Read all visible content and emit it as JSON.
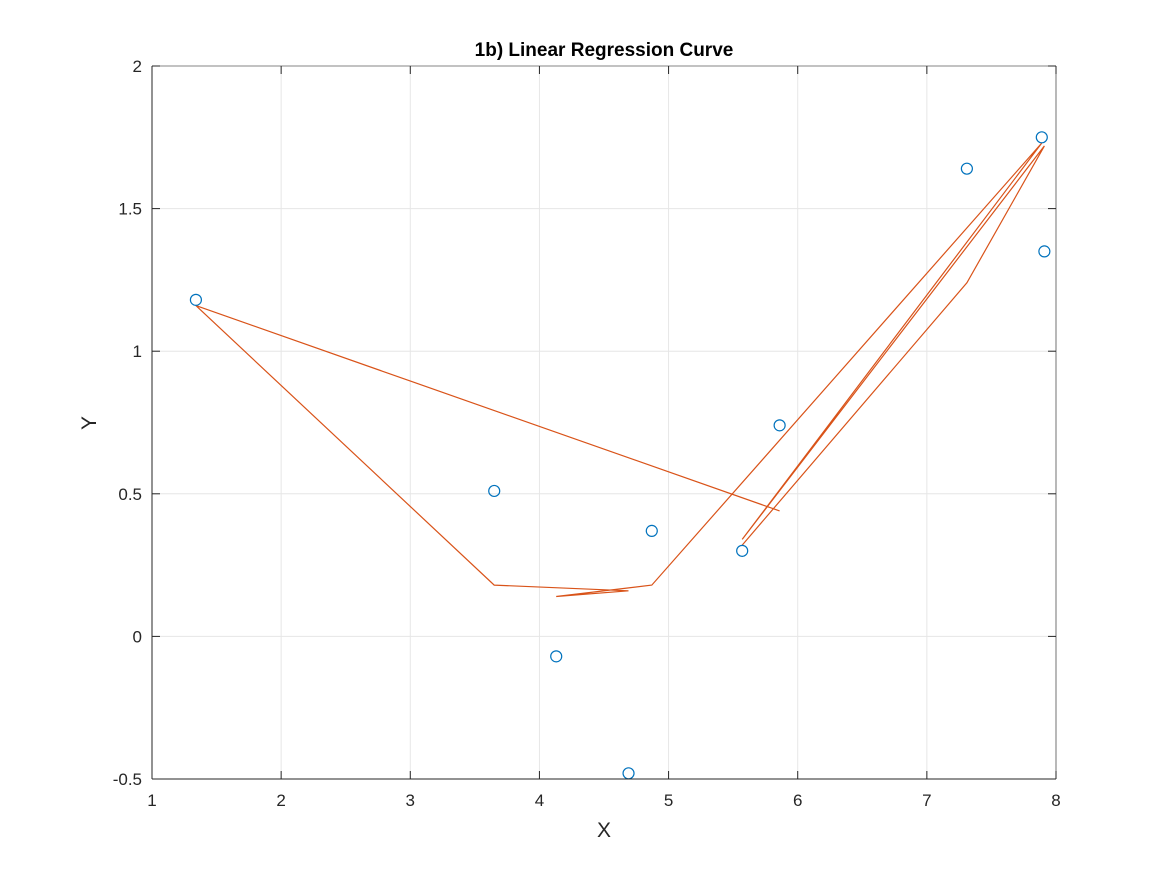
{
  "chart_data": {
    "type": "scatter",
    "title": "1b) Linear Regression Curve",
    "xlabel": "X",
    "ylabel": "Y",
    "xlim": [
      1,
      8
    ],
    "ylim": [
      -0.5,
      2
    ],
    "xticks": [
      "1",
      "2",
      "3",
      "4",
      "5",
      "6",
      "7",
      "8"
    ],
    "yticks": [
      "-0.5",
      "0",
      "0.5",
      "1",
      "1.5",
      "2"
    ],
    "grid": true,
    "series": [
      {
        "kind": "markers",
        "marker": "circle",
        "color": "#0072BD",
        "x": [
          1.34,
          3.65,
          4.13,
          4.69,
          4.87,
          5.57,
          5.86,
          7.31,
          7.89,
          7.91
        ],
        "y": [
          1.18,
          0.51,
          -0.07,
          -0.48,
          0.37,
          0.3,
          0.74,
          1.64,
          1.75,
          1.35
        ]
      },
      {
        "kind": "line",
        "color": "#D95319",
        "x": [
          5.86,
          1.34,
          3.65,
          4.69,
          4.13,
          4.87,
          7.89,
          5.57,
          7.91,
          7.31,
          5.57
        ],
        "y": [
          0.44,
          1.16,
          0.18,
          0.16,
          0.14,
          0.18,
          1.73,
          0.34,
          1.72,
          1.24,
          0.32
        ]
      }
    ]
  }
}
